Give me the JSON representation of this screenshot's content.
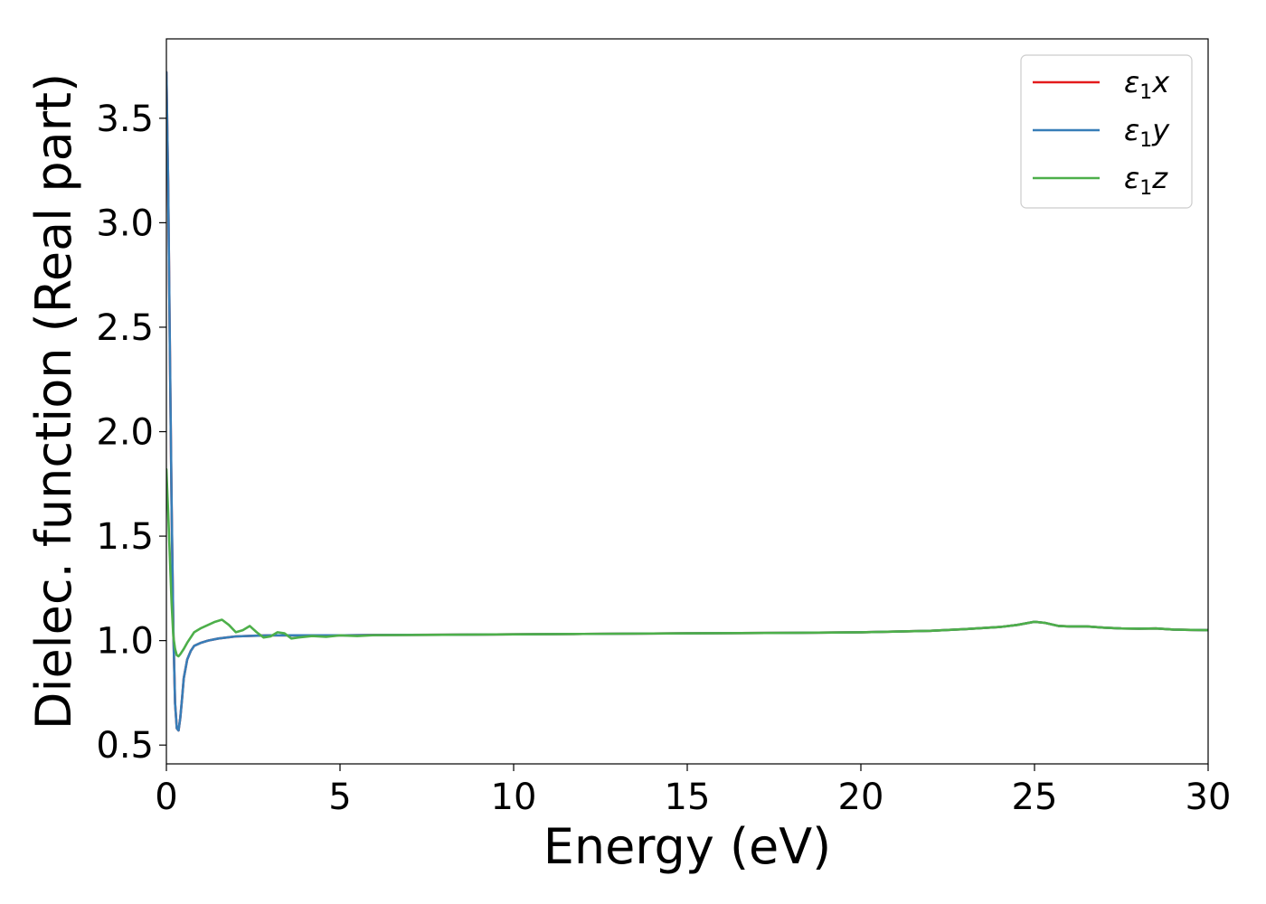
{
  "chart_data": {
    "type": "line",
    "xlabel": "Energy (eV)",
    "ylabel": "Dielec. function (Real part)",
    "xlim": [
      0,
      30
    ],
    "ylim": [
      0.41,
      3.88
    ],
    "xticks": [
      0,
      5,
      10,
      15,
      20,
      25,
      30
    ],
    "yticks": [
      0.5,
      1.0,
      1.5,
      2.0,
      2.5,
      3.0,
      3.5
    ],
    "xtick_labels": [
      "0",
      "5",
      "10",
      "15",
      "20",
      "25",
      "30"
    ],
    "ytick_labels": [
      "0.5",
      "1.0",
      "1.5",
      "2.0",
      "2.5",
      "3.0",
      "3.5"
    ],
    "grid": false,
    "legend_position": "top-right",
    "series": [
      {
        "name": "ε1x",
        "name_base": "ε",
        "name_sub": "1",
        "name_suffix": "x",
        "color": "#e41a1c",
        "x": [
          0.0,
          0.05,
          0.1,
          0.15,
          0.2,
          0.25,
          0.3,
          0.35,
          0.4,
          0.45,
          0.5,
          0.6,
          0.7,
          0.8,
          1.0,
          1.2,
          1.5,
          2.0,
          2.5,
          3.0,
          4.0,
          5.0,
          6.0,
          8.0,
          10.0,
          12.0,
          15.0,
          18.0,
          20.0,
          22.0,
          23.0,
          24.0,
          24.5,
          25.0,
          25.3,
          25.7,
          26.0,
          26.5,
          27.0,
          27.5,
          28.0,
          28.5,
          29.0,
          29.5,
          30.0
        ],
        "y": [
          3.72,
          3.2,
          2.4,
          1.65,
          1.05,
          0.7,
          0.58,
          0.57,
          0.63,
          0.72,
          0.82,
          0.91,
          0.95,
          0.975,
          0.99,
          1.0,
          1.01,
          1.02,
          1.023,
          1.025,
          1.025,
          1.025,
          1.027,
          1.028,
          1.03,
          1.032,
          1.035,
          1.037,
          1.04,
          1.047,
          1.055,
          1.065,
          1.075,
          1.09,
          1.085,
          1.07,
          1.068,
          1.068,
          1.062,
          1.058,
          1.057,
          1.058,
          1.053,
          1.051,
          1.05
        ]
      },
      {
        "name": "ε1y",
        "name_base": "ε",
        "name_sub": "1",
        "name_suffix": "y",
        "color": "#377eb8",
        "x": [
          0.0,
          0.05,
          0.1,
          0.15,
          0.2,
          0.25,
          0.3,
          0.35,
          0.4,
          0.45,
          0.5,
          0.6,
          0.7,
          0.8,
          1.0,
          1.2,
          1.5,
          2.0,
          2.5,
          3.0,
          4.0,
          5.0,
          6.0,
          8.0,
          10.0,
          12.0,
          15.0,
          18.0,
          20.0,
          22.0,
          23.0,
          24.0,
          24.5,
          25.0,
          25.3,
          25.7,
          26.0,
          26.5,
          27.0,
          27.5,
          28.0,
          28.5,
          29.0,
          29.5,
          30.0
        ],
        "y": [
          3.72,
          3.2,
          2.4,
          1.65,
          1.05,
          0.7,
          0.58,
          0.57,
          0.63,
          0.72,
          0.82,
          0.91,
          0.95,
          0.975,
          0.99,
          1.0,
          1.01,
          1.02,
          1.023,
          1.025,
          1.025,
          1.025,
          1.027,
          1.028,
          1.03,
          1.032,
          1.035,
          1.037,
          1.04,
          1.047,
          1.055,
          1.065,
          1.075,
          1.09,
          1.085,
          1.07,
          1.068,
          1.068,
          1.062,
          1.058,
          1.057,
          1.058,
          1.053,
          1.051,
          1.05
        ]
      },
      {
        "name": "ε1z",
        "name_base": "ε",
        "name_sub": "1",
        "name_suffix": "z",
        "color": "#4daf4a",
        "x": [
          0.0,
          0.05,
          0.1,
          0.15,
          0.2,
          0.25,
          0.3,
          0.35,
          0.4,
          0.5,
          0.6,
          0.8,
          1.0,
          1.2,
          1.4,
          1.6,
          1.8,
          2.0,
          2.2,
          2.4,
          2.6,
          2.8,
          3.0,
          3.2,
          3.4,
          3.6,
          3.8,
          4.2,
          4.6,
          5.0,
          5.5,
          6.0,
          8.0,
          10.0,
          12.0,
          15.0,
          18.0,
          20.0,
          22.0,
          23.0,
          24.0,
          24.5,
          25.0,
          25.3,
          25.7,
          26.0,
          26.5,
          27.0,
          27.5,
          28.0,
          28.5,
          29.0,
          29.5,
          30.0
        ],
        "y": [
          1.82,
          1.62,
          1.4,
          1.18,
          1.02,
          0.96,
          0.93,
          0.925,
          0.935,
          0.96,
          0.99,
          1.04,
          1.06,
          1.075,
          1.09,
          1.1,
          1.075,
          1.04,
          1.05,
          1.07,
          1.04,
          1.015,
          1.02,
          1.04,
          1.035,
          1.01,
          1.015,
          1.022,
          1.018,
          1.025,
          1.022,
          1.026,
          1.028,
          1.03,
          1.032,
          1.035,
          1.037,
          1.04,
          1.047,
          1.055,
          1.065,
          1.075,
          1.09,
          1.085,
          1.07,
          1.068,
          1.068,
          1.062,
          1.058,
          1.057,
          1.058,
          1.053,
          1.051,
          1.05
        ]
      }
    ]
  }
}
